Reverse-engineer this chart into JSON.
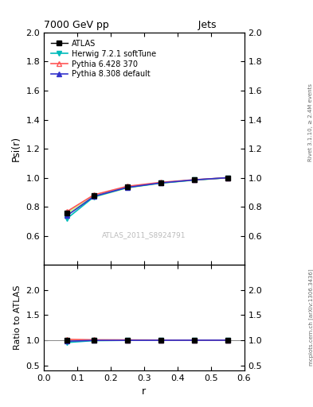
{
  "title_left": "7000 GeV pp",
  "title_right": "Jets",
  "ylabel_main": "Psi(r)",
  "ylabel_ratio": "Ratio to ATLAS",
  "xlabel": "r",
  "right_label_top": "Rivet 3.1.10, ≥ 2.4M events",
  "right_label_bottom": "mcplots.cern.ch [arXiv:1306.3436]",
  "watermark": "ATLAS_2011_S8924791",
  "xlim": [
    0,
    0.6
  ],
  "main_ylim": [
    0.4,
    2.0
  ],
  "main_yticks": [
    0.6,
    0.8,
    1.0,
    1.2,
    1.4,
    1.6,
    1.8,
    2.0
  ],
  "ratio_ylim": [
    0.4,
    2.5
  ],
  "ratio_yticks": [
    0.5,
    1.0,
    1.5,
    2.0
  ],
  "x_data": [
    0.07,
    0.15,
    0.25,
    0.35,
    0.45,
    0.55
  ],
  "atlas_data": [
    0.755,
    0.875,
    0.935,
    0.965,
    0.985,
    1.0
  ],
  "atlas_error": [
    0.012,
    0.01,
    0.007,
    0.005,
    0.004,
    0.003
  ],
  "herwig_data": [
    0.72,
    0.868,
    0.932,
    0.963,
    0.984,
    1.0
  ],
  "pythia6_data": [
    0.768,
    0.882,
    0.941,
    0.968,
    0.986,
    1.0
  ],
  "pythia8_data": [
    0.74,
    0.872,
    0.933,
    0.964,
    0.985,
    1.0
  ],
  "herwig_ratio": [
    0.954,
    0.992,
    0.997,
    0.998,
    0.999,
    1.0
  ],
  "pythia6_ratio": [
    1.017,
    1.008,
    1.006,
    1.003,
    1.001,
    1.0
  ],
  "pythia8_ratio": [
    0.98,
    0.997,
    0.998,
    0.999,
    1.0,
    1.0
  ],
  "atlas_color": "#000000",
  "herwig_color": "#00bbbb",
  "pythia6_color": "#ff5555",
  "pythia8_color": "#3333cc",
  "band_color": "#ccff99",
  "legend_labels": [
    "ATLAS",
    "Herwig 7.2.1 softTune",
    "Pythia 6.428 370",
    "Pythia 8.308 default"
  ],
  "bg_color": "#ffffff"
}
